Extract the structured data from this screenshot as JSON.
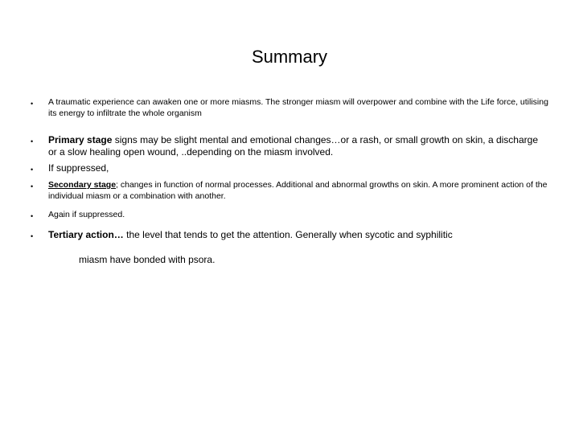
{
  "title": "Summary",
  "b1": "A traumatic experience can awaken one or more miasms. The stronger miasm will overpower and combine with the Life force, utilising its energy to infiltrate the whole organism",
  "b2_lead": "Primary stage",
  "b2_rest": " signs may be slight mental and emotional changes…or a rash, or small growth on skin, a discharge or a slow healing open wound, ..depending on the miasm involved.",
  "b3": "If suppressed,",
  "b4_lead": "Secondary stage",
  "b4_rest": "; changes in function of normal processes. Additional and abnormal growths on skin. A more prominent action of the individual miasm or a combination with another.",
  "b5": "Again if suppressed.",
  "b6_lead": " Tertiary action…",
  "b6_rest": " the level that tends to get the attention. Generally when sycotic and syphilitic",
  "trail": "miasm have bonded with psora.",
  "colors": {
    "bg": "#ffffff",
    "text": "#000000"
  }
}
